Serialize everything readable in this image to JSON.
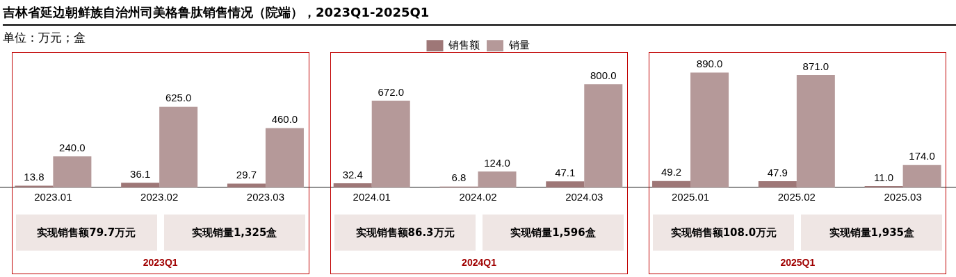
{
  "chart_data": {
    "type": "bar",
    "title": "吉林省延边朝鲜族自治州司美格鲁肽销售情况（院端），2023Q1-2025Q1",
    "subtitle": "单位：万元；盒",
    "categories": [
      "2023.01",
      "2023.02",
      "2023.03",
      "2024.01",
      "2024.02",
      "2024.03",
      "2025.01",
      "2025.02",
      "2025.03"
    ],
    "series": [
      {
        "name": "销售额",
        "color": "#9e7777",
        "values": [
          13.8,
          36.1,
          29.7,
          32.4,
          6.8,
          47.1,
          49.2,
          47.9,
          11.0
        ],
        "value_labels": [
          "13.8",
          "36.1",
          "29.7",
          "32.4",
          "6.8",
          "47.1",
          "49.2",
          "47.9",
          "11.0"
        ]
      },
      {
        "name": "销量",
        "color": "#b59999",
        "values": [
          240,
          625,
          460,
          672,
          124,
          800,
          890,
          871,
          174
        ],
        "value_labels": [
          "240.0",
          "625.0",
          "460.0",
          "672.0",
          "124.0",
          "800.0",
          "890.0",
          "871.0",
          "174.0"
        ]
      }
    ],
    "tick_labels": "x",
    "grid": false,
    "legend": "top",
    "annotations": [
      "实现销售额79.7万元",
      "实现销量1,325盒",
      "2023Q1",
      "实现销售额86.3万元",
      "实现销量1,596盒",
      "2024Q1",
      "实现销售额108.0万元",
      "实现销量1,935盒",
      "2025Q1"
    ]
  }
}
